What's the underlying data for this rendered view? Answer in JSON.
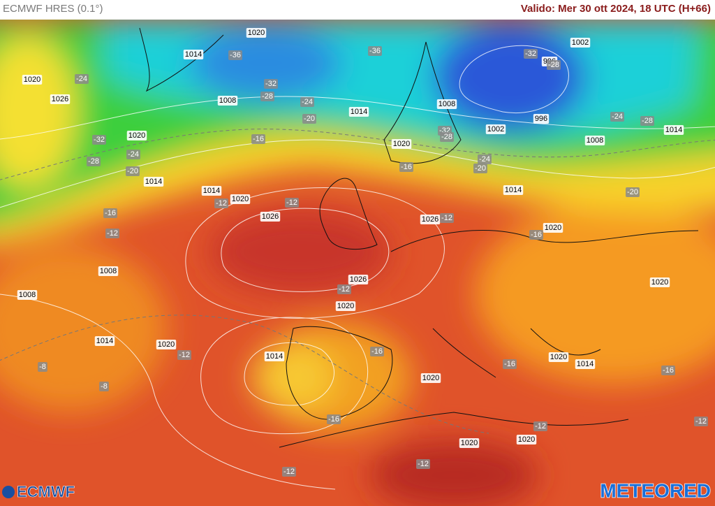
{
  "header": {
    "title": "ECMWF HRES (0.1°)",
    "valid": "Valido: Mer 30 ott 2024, 18 UTC (H+66)"
  },
  "pressure_labels": [
    1020,
    1014,
    1020,
    1026,
    1008,
    1014,
    1008,
    1002,
    996,
    996,
    1002,
    1008,
    1014,
    1020,
    1020,
    1014,
    1014,
    1020,
    1026,
    1026,
    1014,
    1020,
    1008,
    1008,
    1026,
    1020,
    1014,
    1020,
    1014,
    1020,
    1020,
    1014,
    1020,
    1020,
    1020
  ],
  "temperature_labels": [
    -36,
    -36,
    -32,
    -28,
    -32,
    -28,
    -24,
    -24,
    -20,
    -32,
    -28,
    -24,
    -20,
    -16,
    -32,
    -28,
    -24,
    -20,
    -24,
    -28,
    -20,
    -16,
    -16,
    -12,
    -12,
    -12,
    -12,
    -16,
    -12,
    -16,
    -12,
    -8,
    -8,
    -16,
    -16,
    -16,
    -12,
    -12,
    -12,
    -12
  ],
  "logos": {
    "left": "ECMWF",
    "right": "METEORED"
  }
}
